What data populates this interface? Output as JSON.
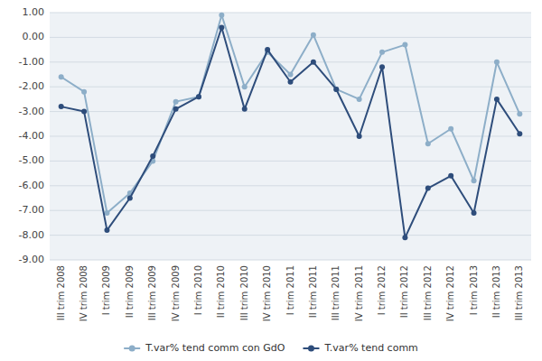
{
  "chart_data": {
    "type": "line",
    "categories": [
      "III trim 2008",
      "IV trim 2008",
      "I trim 2009",
      "II trim 2009",
      "III trim 2009",
      "IV trim 2009",
      "I trim 2010",
      "II trim 2010",
      "III trim 2010",
      "IV trim 2010",
      "I trim 2011",
      "II trim 2011",
      "III trim 2011",
      "IV trim 2011",
      "I trim 2012",
      "II trim 2012",
      "III trim 2012",
      "IV trim 2012",
      "I trim 2013",
      "II trim 2013",
      "III trim 2013"
    ],
    "series": [
      {
        "name": "T.var% tend comm con GdO",
        "color": "#8daec8",
        "marker": "circle",
        "values": [
          -1.6,
          -2.2,
          -7.1,
          -6.3,
          -5.0,
          -2.6,
          -2.4,
          0.9,
          -2.0,
          -0.6,
          -1.5,
          0.1,
          -2.1,
          -2.5,
          -0.6,
          -0.3,
          -4.3,
          -3.7,
          -5.8,
          -1.0,
          -3.1
        ]
      },
      {
        "name": "T.var% tend comm",
        "color": "#2e4d7b",
        "marker": "circle",
        "values": [
          -2.8,
          -3.0,
          -7.8,
          -6.5,
          -4.8,
          -2.9,
          -2.4,
          0.4,
          -2.9,
          -0.5,
          -1.8,
          -1.0,
          -2.1,
          -4.0,
          -1.2,
          -8.1,
          -6.1,
          -5.6,
          -7.1,
          -2.5,
          -3.9
        ]
      }
    ],
    "ylim": [
      -9.0,
      1.0
    ],
    "yticks": [
      {
        "value": 1.0,
        "label": "1.00"
      },
      {
        "value": 0.0,
        "label": "0.00"
      },
      {
        "value": -1.0,
        "label": "-1.00"
      },
      {
        "value": -2.0,
        "label": "-2.00"
      },
      {
        "value": -3.0,
        "label": "-3.00"
      },
      {
        "value": -4.0,
        "label": "-4.00"
      },
      {
        "value": -5.0,
        "label": "-5.00"
      },
      {
        "value": -6.0,
        "label": "-6.00"
      },
      {
        "value": -7.0,
        "label": "-7.00"
      },
      {
        "value": -8.0,
        "label": "-8.00"
      },
      {
        "value": -9.0,
        "label": "-9.00"
      }
    ],
    "grid": true,
    "legend": "bottom"
  }
}
